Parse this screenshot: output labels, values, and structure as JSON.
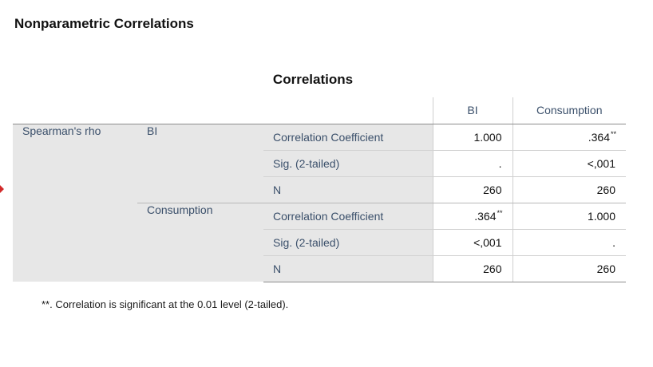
{
  "heading": "Nonparametric Correlations",
  "table": {
    "title": "Correlations",
    "columns": [
      "BI",
      "Consumption"
    ],
    "method_label": "Spearman's rho",
    "groups": [
      {
        "variable": "BI",
        "rows": [
          {
            "stat": "Correlation Coefficient",
            "values": [
              "1.000",
              ".364"
            ],
            "flags": [
              "",
              "**"
            ]
          },
          {
            "stat": "Sig. (2-tailed)",
            "values": [
              ".",
              "<,001"
            ],
            "flags": [
              "",
              ""
            ]
          },
          {
            "stat": "N",
            "values": [
              "260",
              "260"
            ],
            "flags": [
              "",
              ""
            ]
          }
        ]
      },
      {
        "variable": "Consumption",
        "rows": [
          {
            "stat": "Correlation Coefficient",
            "values": [
              ".364",
              "1.000"
            ],
            "flags": [
              "**",
              ""
            ]
          },
          {
            "stat": "Sig. (2-tailed)",
            "values": [
              "<,001",
              "."
            ],
            "flags": [
              "",
              ""
            ]
          },
          {
            "stat": "N",
            "values": [
              "260",
              "260"
            ],
            "flags": [
              "",
              ""
            ]
          }
        ]
      }
    ]
  },
  "footnote": "**. Correlation is significant at the 0.01 level (2-tailed).",
  "colors": {
    "stub_background": "#e7e7e7",
    "stub_text": "#3a4f6a",
    "marker": "#d22a2a"
  }
}
